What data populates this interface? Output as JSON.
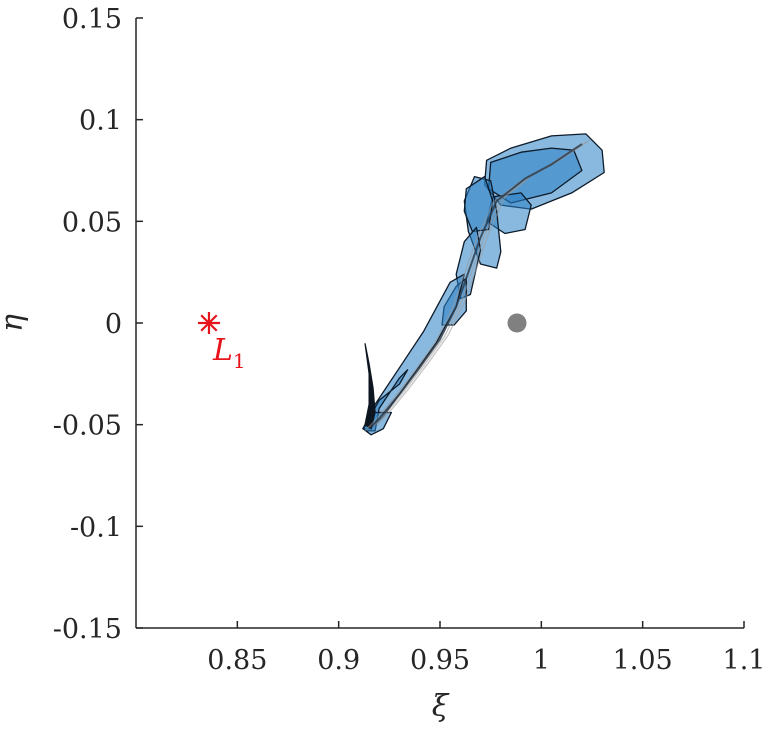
{
  "chart_data": {
    "type": "scatter",
    "xlabel": "ξ",
    "ylabel": "η",
    "xlim": [
      0.8,
      1.1
    ],
    "ylim": [
      -0.15,
      0.15
    ],
    "x_ticks": [
      0.85,
      0.9,
      0.95,
      1.0,
      1.05,
      1.1
    ],
    "x_tick_labels": [
      "0.85",
      "0.9",
      "0.95",
      "1",
      "1.05",
      "1.1"
    ],
    "y_ticks": [
      0.15,
      0.1,
      0.05,
      0.0,
      -0.05,
      -0.1,
      -0.15
    ],
    "y_tick_labels": [
      "0.15",
      "0.1",
      "0.05",
      "0",
      "-0.05",
      "-0.1",
      "-0.15"
    ],
    "grid": false,
    "axes_box": "left-bottom",
    "points": [
      {
        "name": "L1-point",
        "x": 0.836,
        "y": 0.0,
        "marker": "asterisk",
        "color": "#e8141c"
      },
      {
        "name": "moon-point",
        "x": 0.988,
        "y": 0.0,
        "marker": "dot",
        "color": "#808080"
      }
    ],
    "annotations": [
      {
        "name": "L1-label",
        "text": "L",
        "subscript": "1",
        "x": 0.837,
        "y": -0.0005,
        "color": "#e8141c"
      }
    ],
    "fill_color": "#2a7fc4",
    "edge_color": "#0d1b2a",
    "trajectory_centerline": [
      [
        0.915,
        -0.052
      ],
      [
        0.92,
        -0.047
      ],
      [
        0.93,
        -0.035
      ],
      [
        0.94,
        -0.022
      ],
      [
        0.95,
        -0.008
      ],
      [
        0.958,
        0.008
      ],
      [
        0.964,
        0.025
      ],
      [
        0.97,
        0.042
      ],
      [
        0.978,
        0.06
      ],
      [
        0.992,
        0.071
      ],
      [
        1.005,
        0.078
      ],
      [
        1.02,
        0.088
      ]
    ],
    "regions": [
      {
        "name": "region-head",
        "outline": [
          [
            0.973,
            0.08
          ],
          [
            0.985,
            0.086
          ],
          [
            1.005,
            0.092
          ],
          [
            1.022,
            0.093
          ],
          [
            1.03,
            0.085
          ],
          [
            1.031,
            0.074
          ],
          [
            1.015,
            0.064
          ],
          [
            0.995,
            0.056
          ],
          [
            0.98,
            0.058
          ],
          [
            0.972,
            0.068
          ]
        ]
      },
      {
        "name": "region-head-inner",
        "outline": [
          [
            0.975,
            0.079
          ],
          [
            0.99,
            0.084
          ],
          [
            1.005,
            0.086
          ],
          [
            1.016,
            0.085
          ],
          [
            1.02,
            0.075
          ],
          [
            1.005,
            0.064
          ],
          [
            0.985,
            0.059
          ],
          [
            0.974,
            0.066
          ]
        ]
      },
      {
        "name": "region-lobe-right",
        "outline": [
          [
            0.976,
            0.062
          ],
          [
            0.99,
            0.064
          ],
          [
            0.995,
            0.058
          ],
          [
            0.992,
            0.046
          ],
          [
            0.982,
            0.044
          ],
          [
            0.973,
            0.05
          ]
        ]
      },
      {
        "name": "region-neck",
        "outline": [
          [
            0.967,
            0.072
          ],
          [
            0.975,
            0.07
          ],
          [
            0.978,
            0.055
          ],
          [
            0.98,
            0.035
          ],
          [
            0.978,
            0.027
          ],
          [
            0.97,
            0.029
          ],
          [
            0.964,
            0.045
          ],
          [
            0.962,
            0.06
          ]
        ]
      },
      {
        "name": "region-neck-upper",
        "outline": [
          [
            0.963,
            0.066
          ],
          [
            0.972,
            0.072
          ],
          [
            0.976,
            0.06
          ],
          [
            0.974,
            0.046
          ],
          [
            0.966,
            0.045
          ],
          [
            0.962,
            0.055
          ]
        ]
      },
      {
        "name": "region-mid",
        "outline": [
          [
            0.962,
            0.04
          ],
          [
            0.968,
            0.047
          ],
          [
            0.97,
            0.036
          ],
          [
            0.965,
            0.014
          ],
          [
            0.96,
            0.012
          ],
          [
            0.958,
            0.024
          ]
        ]
      },
      {
        "name": "region-right-lobe-mid",
        "outline": [
          [
            0.958,
            0.018
          ],
          [
            0.963,
            0.022
          ],
          [
            0.963,
            0.006
          ],
          [
            0.957,
            -0.001
          ],
          [
            0.951,
            -0.001
          ],
          [
            0.952,
            0.008
          ]
        ]
      },
      {
        "name": "region-body",
        "outline": [
          [
            0.955,
            0.02
          ],
          [
            0.962,
            0.024
          ],
          [
            0.958,
            0.008
          ],
          [
            0.948,
            -0.01
          ],
          [
            0.935,
            -0.028
          ],
          [
            0.922,
            -0.046
          ],
          [
            0.916,
            -0.052
          ],
          [
            0.912,
            -0.052
          ],
          [
            0.918,
            -0.04
          ],
          [
            0.93,
            -0.022
          ],
          [
            0.942,
            -0.004
          ]
        ]
      },
      {
        "name": "region-lower",
        "outline": [
          [
            0.93,
            -0.03
          ],
          [
            0.934,
            -0.023
          ],
          [
            0.93,
            -0.027
          ],
          [
            0.92,
            -0.042
          ],
          [
            0.918,
            -0.053
          ],
          [
            0.914,
            -0.053
          ],
          [
            0.912,
            -0.052
          ],
          [
            0.92,
            -0.038
          ]
        ]
      },
      {
        "name": "region-tip",
        "outline": [
          [
            0.912,
            -0.052
          ],
          [
            0.918,
            -0.044
          ],
          [
            0.926,
            -0.044
          ],
          [
            0.922,
            -0.052
          ],
          [
            0.916,
            -0.055
          ]
        ]
      }
    ],
    "tail_curve": [
      [
        0.913,
        -0.01
      ],
      [
        0.915,
        -0.02
      ],
      [
        0.917,
        -0.032
      ],
      [
        0.918,
        -0.044
      ],
      [
        0.916,
        -0.052
      ],
      [
        0.913,
        -0.05
      ],
      [
        0.915,
        -0.04
      ],
      [
        0.915,
        -0.025
      ],
      [
        0.913,
        -0.01
      ]
    ]
  }
}
